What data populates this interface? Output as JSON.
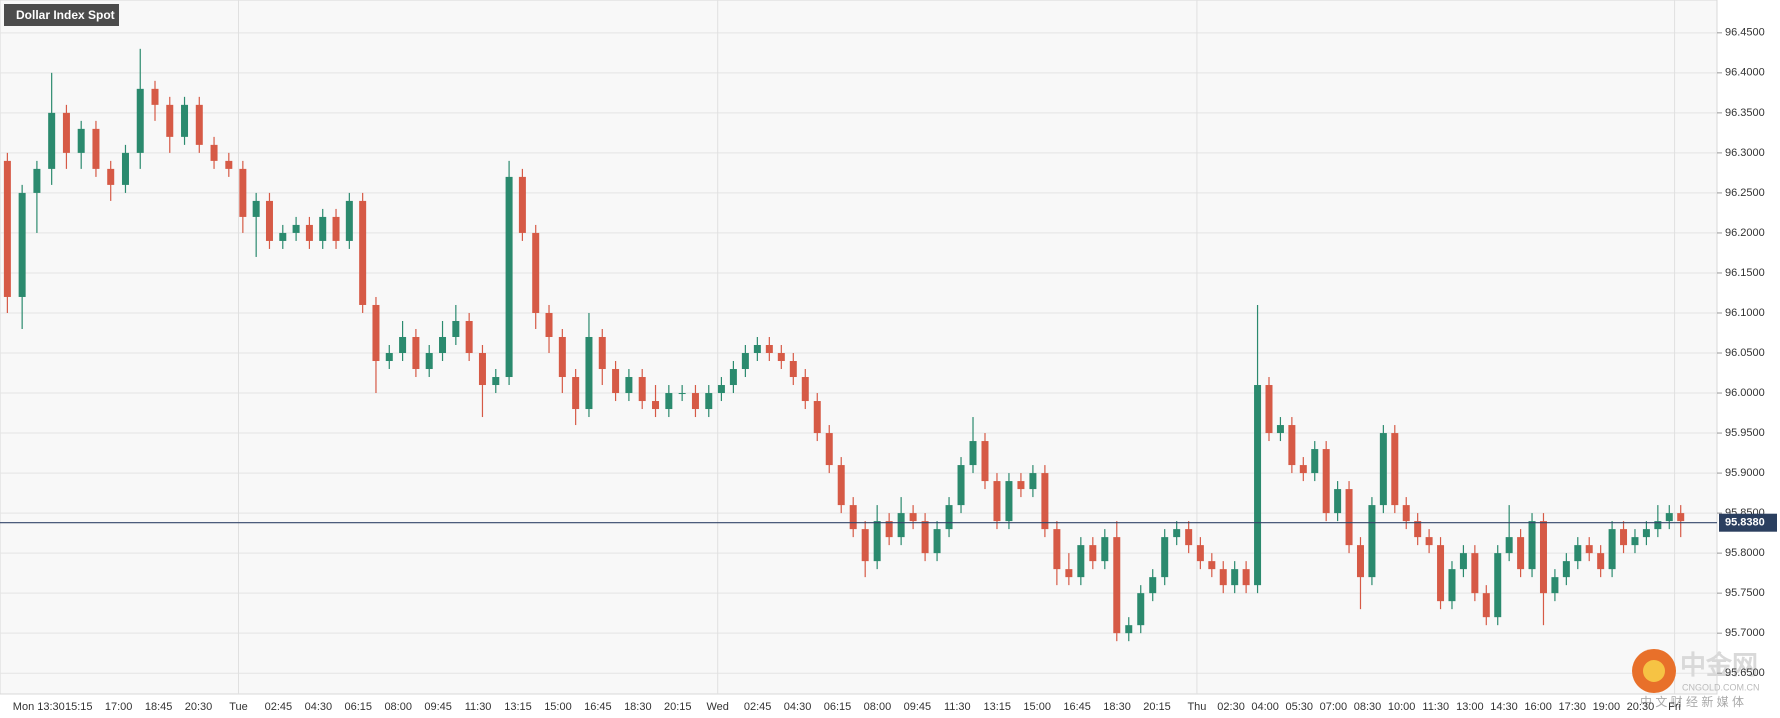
{
  "chart_data": {
    "type": "candlestick",
    "title": "Dollar Index Spot",
    "categories": [
      "Mon 13:30",
      "15:15",
      "17:00",
      "18:45",
      "20:30",
      "Tue",
      "02:45",
      "04:30",
      "06:15",
      "08:00",
      "09:45",
      "11:30",
      "13:15",
      "15:00",
      "16:45",
      "18:30",
      "20:15",
      "Wed",
      "02:45",
      "04:30",
      "06:15",
      "08:00",
      "09:45",
      "11:30",
      "13:15",
      "15:00",
      "16:45",
      "18:30",
      "20:15",
      "Thu",
      "02:30",
      "04:00",
      "05:30",
      "07:00",
      "08:30",
      "10:00",
      "11:30",
      "13:00",
      "14:30",
      "16:00",
      "17:30",
      "19:00",
      "20:30",
      "Fri"
    ],
    "open": [
      96.29,
      96.12,
      96.25,
      96.28,
      96.35,
      96.3,
      96.33,
      96.28,
      96.26,
      96.3,
      96.38,
      96.36,
      96.32,
      96.36,
      96.31,
      96.29,
      96.28,
      96.22,
      96.24,
      96.19,
      96.2,
      96.21,
      96.19,
      96.22,
      96.19,
      96.24,
      96.11,
      96.04,
      96.05,
      96.07,
      96.03,
      96.05,
      96.07,
      96.09,
      96.05,
      96.01,
      96.02,
      96.27,
      96.2,
      96.1,
      96.07,
      96.02,
      95.98,
      96.07,
      96.03,
      96.0,
      96.02,
      95.99,
      95.98,
      96.0,
      96.0,
      95.98,
      96.0,
      96.01,
      96.03,
      96.05,
      96.06,
      96.05,
      96.04,
      96.02,
      95.99,
      95.95,
      95.91,
      95.86,
      95.83,
      95.79,
      95.84,
      95.82,
      95.85,
      95.84,
      95.8,
      95.83,
      95.86,
      95.91,
      95.94,
      95.89,
      95.84,
      95.89,
      95.88,
      95.9,
      95.83,
      95.78,
      95.77,
      95.81,
      95.79,
      95.82,
      95.7,
      95.71,
      95.75,
      95.77,
      95.82,
      95.83,
      95.81,
      95.79,
      95.78,
      95.76,
      95.78,
      95.76,
      96.01,
      95.95,
      95.96,
      95.91,
      95.9,
      95.93,
      95.85,
      95.88,
      95.81,
      95.77,
      95.86,
      95.95,
      95.86,
      95.84,
      95.82,
      95.81,
      95.74,
      95.78,
      95.8,
      95.75,
      95.72,
      95.8,
      95.82,
      95.78,
      95.84,
      95.75,
      95.77,
      95.79,
      95.81,
      95.8,
      95.78,
      95.83,
      95.81,
      95.82,
      95.83,
      95.84,
      95.85
    ],
    "high": [
      96.3,
      96.26,
      96.29,
      96.4,
      96.36,
      96.34,
      96.34,
      96.29,
      96.31,
      96.43,
      96.39,
      96.37,
      96.37,
      96.37,
      96.32,
      96.3,
      96.29,
      96.25,
      96.25,
      96.21,
      96.22,
      96.22,
      96.23,
      96.23,
      96.25,
      96.25,
      96.12,
      96.06,
      96.09,
      96.08,
      96.06,
      96.09,
      96.11,
      96.1,
      96.06,
      96.03,
      96.29,
      96.28,
      96.21,
      96.11,
      96.08,
      96.03,
      96.1,
      96.08,
      96.04,
      96.03,
      96.03,
      96.01,
      96.01,
      96.01,
      96.01,
      96.01,
      96.02,
      96.04,
      96.06,
      96.07,
      96.07,
      96.06,
      96.05,
      96.03,
      96.0,
      95.96,
      95.92,
      95.87,
      95.84,
      95.86,
      95.85,
      95.87,
      95.86,
      95.85,
      95.84,
      95.87,
      95.92,
      95.97,
      95.95,
      95.9,
      95.9,
      95.9,
      95.91,
      95.91,
      95.84,
      95.8,
      95.82,
      95.82,
      95.83,
      95.84,
      95.72,
      95.76,
      95.78,
      95.83,
      95.84,
      95.84,
      95.82,
      95.8,
      95.79,
      95.79,
      95.79,
      96.11,
      96.02,
      95.97,
      95.97,
      95.92,
      95.94,
      95.94,
      95.89,
      95.89,
      95.82,
      95.87,
      95.96,
      95.96,
      95.87,
      95.85,
      95.83,
      95.82,
      95.79,
      95.81,
      95.81,
      95.76,
      95.81,
      95.86,
      95.83,
      95.85,
      95.85,
      95.78,
      95.8,
      95.82,
      95.82,
      95.81,
      95.84,
      95.84,
      95.83,
      95.84,
      95.86,
      95.86,
      95.86
    ],
    "low": [
      96.1,
      96.08,
      96.2,
      96.26,
      96.28,
      96.28,
      96.27,
      96.24,
      96.25,
      96.28,
      96.34,
      96.3,
      96.31,
      96.3,
      96.28,
      96.27,
      96.2,
      96.17,
      96.18,
      96.18,
      96.19,
      96.18,
      96.18,
      96.18,
      96.18,
      96.1,
      96.0,
      96.03,
      96.04,
      96.02,
      96.02,
      96.04,
      96.06,
      96.04,
      95.97,
      96.0,
      96.01,
      96.19,
      96.08,
      96.05,
      96.0,
      95.96,
      95.97,
      96.01,
      95.99,
      95.99,
      95.98,
      95.97,
      95.97,
      95.99,
      95.97,
      95.97,
      95.99,
      96.0,
      96.02,
      96.04,
      96.04,
      96.03,
      96.01,
      95.98,
      95.94,
      95.9,
      95.85,
      95.82,
      95.77,
      95.78,
      95.81,
      95.81,
      95.83,
      95.79,
      95.79,
      95.82,
      95.85,
      95.9,
      95.88,
      95.83,
      95.83,
      95.87,
      95.87,
      95.82,
      95.76,
      95.76,
      95.76,
      95.78,
      95.78,
      95.69,
      95.69,
      95.7,
      95.74,
      95.76,
      95.81,
      95.8,
      95.78,
      95.77,
      95.75,
      95.75,
      95.75,
      95.75,
      95.94,
      95.94,
      95.9,
      95.89,
      95.89,
      95.84,
      95.84,
      95.8,
      95.73,
      95.76,
      95.85,
      95.85,
      95.83,
      95.81,
      95.8,
      95.73,
      95.73,
      95.77,
      95.74,
      95.71,
      95.71,
      95.79,
      95.77,
      95.77,
      95.71,
      95.74,
      95.76,
      95.78,
      95.79,
      95.77,
      95.77,
      95.8,
      95.8,
      95.81,
      95.82,
      95.83,
      95.82
    ],
    "close": [
      96.12,
      96.25,
      96.28,
      96.35,
      96.3,
      96.33,
      96.28,
      96.26,
      96.3,
      96.38,
      96.36,
      96.32,
      96.36,
      96.31,
      96.29,
      96.28,
      96.22,
      96.24,
      96.19,
      96.2,
      96.21,
      96.19,
      96.22,
      96.19,
      96.24,
      96.11,
      96.04,
      96.05,
      96.07,
      96.03,
      96.05,
      96.07,
      96.09,
      96.05,
      96.01,
      96.02,
      96.27,
      96.2,
      96.1,
      96.07,
      96.02,
      95.98,
      96.07,
      96.03,
      96.0,
      96.02,
      95.99,
      95.98,
      96.0,
      96.0,
      95.98,
      96.0,
      96.01,
      96.03,
      96.05,
      96.06,
      96.05,
      96.04,
      96.02,
      95.99,
      95.95,
      95.91,
      95.86,
      95.83,
      95.79,
      95.84,
      95.82,
      95.85,
      95.84,
      95.8,
      95.83,
      95.86,
      95.91,
      95.94,
      95.89,
      95.84,
      95.89,
      95.88,
      95.9,
      95.83,
      95.78,
      95.77,
      95.81,
      95.79,
      95.82,
      95.7,
      95.71,
      95.75,
      95.77,
      95.82,
      95.83,
      95.81,
      95.79,
      95.78,
      95.76,
      95.78,
      95.76,
      96.01,
      95.95,
      95.96,
      95.91,
      95.9,
      95.93,
      95.85,
      95.88,
      95.81,
      95.77,
      95.86,
      95.95,
      95.86,
      95.84,
      95.82,
      95.81,
      95.74,
      95.78,
      95.8,
      95.75,
      95.72,
      95.8,
      95.82,
      95.78,
      95.84,
      95.75,
      95.77,
      95.79,
      95.81,
      95.8,
      95.78,
      95.83,
      95.81,
      95.82,
      95.83,
      95.84,
      95.85,
      95.84
    ],
    "up_color": "#2b8a6e",
    "down_color": "#d65a46",
    "ylim": [
      95.624,
      96.491
    ],
    "yticks": [
      {
        "value": 95.65,
        "label": "95.6500"
      },
      {
        "value": 95.7,
        "label": "95.7000"
      },
      {
        "value": 95.75,
        "label": "95.7500"
      },
      {
        "value": 95.8,
        "label": "95.8000"
      },
      {
        "value": 95.85,
        "label": "95.8500"
      },
      {
        "value": 95.9,
        "label": "95.9000"
      },
      {
        "value": 95.95,
        "label": "95.9500"
      },
      {
        "value": 96.0,
        "label": "96.0000"
      },
      {
        "value": 96.05,
        "label": "96.0500"
      },
      {
        "value": 96.1,
        "label": "96.1000"
      },
      {
        "value": 96.15,
        "label": "96.1500"
      },
      {
        "value": 96.2,
        "label": "96.2000"
      },
      {
        "value": 96.25,
        "label": "96.2500"
      },
      {
        "value": 96.3,
        "label": "96.3000"
      },
      {
        "value": 96.35,
        "label": "96.3500"
      },
      {
        "value": 96.4,
        "label": "96.4000"
      },
      {
        "value": 96.45,
        "label": "96.4500"
      }
    ],
    "last_price": {
      "value": 95.838,
      "label": "95.8380"
    },
    "grid": true
  },
  "watermark": {
    "name": "中金网",
    "site": "CNGOLD.COM.CN",
    "tagline": "中 文 财 经 新 媒 体"
  }
}
